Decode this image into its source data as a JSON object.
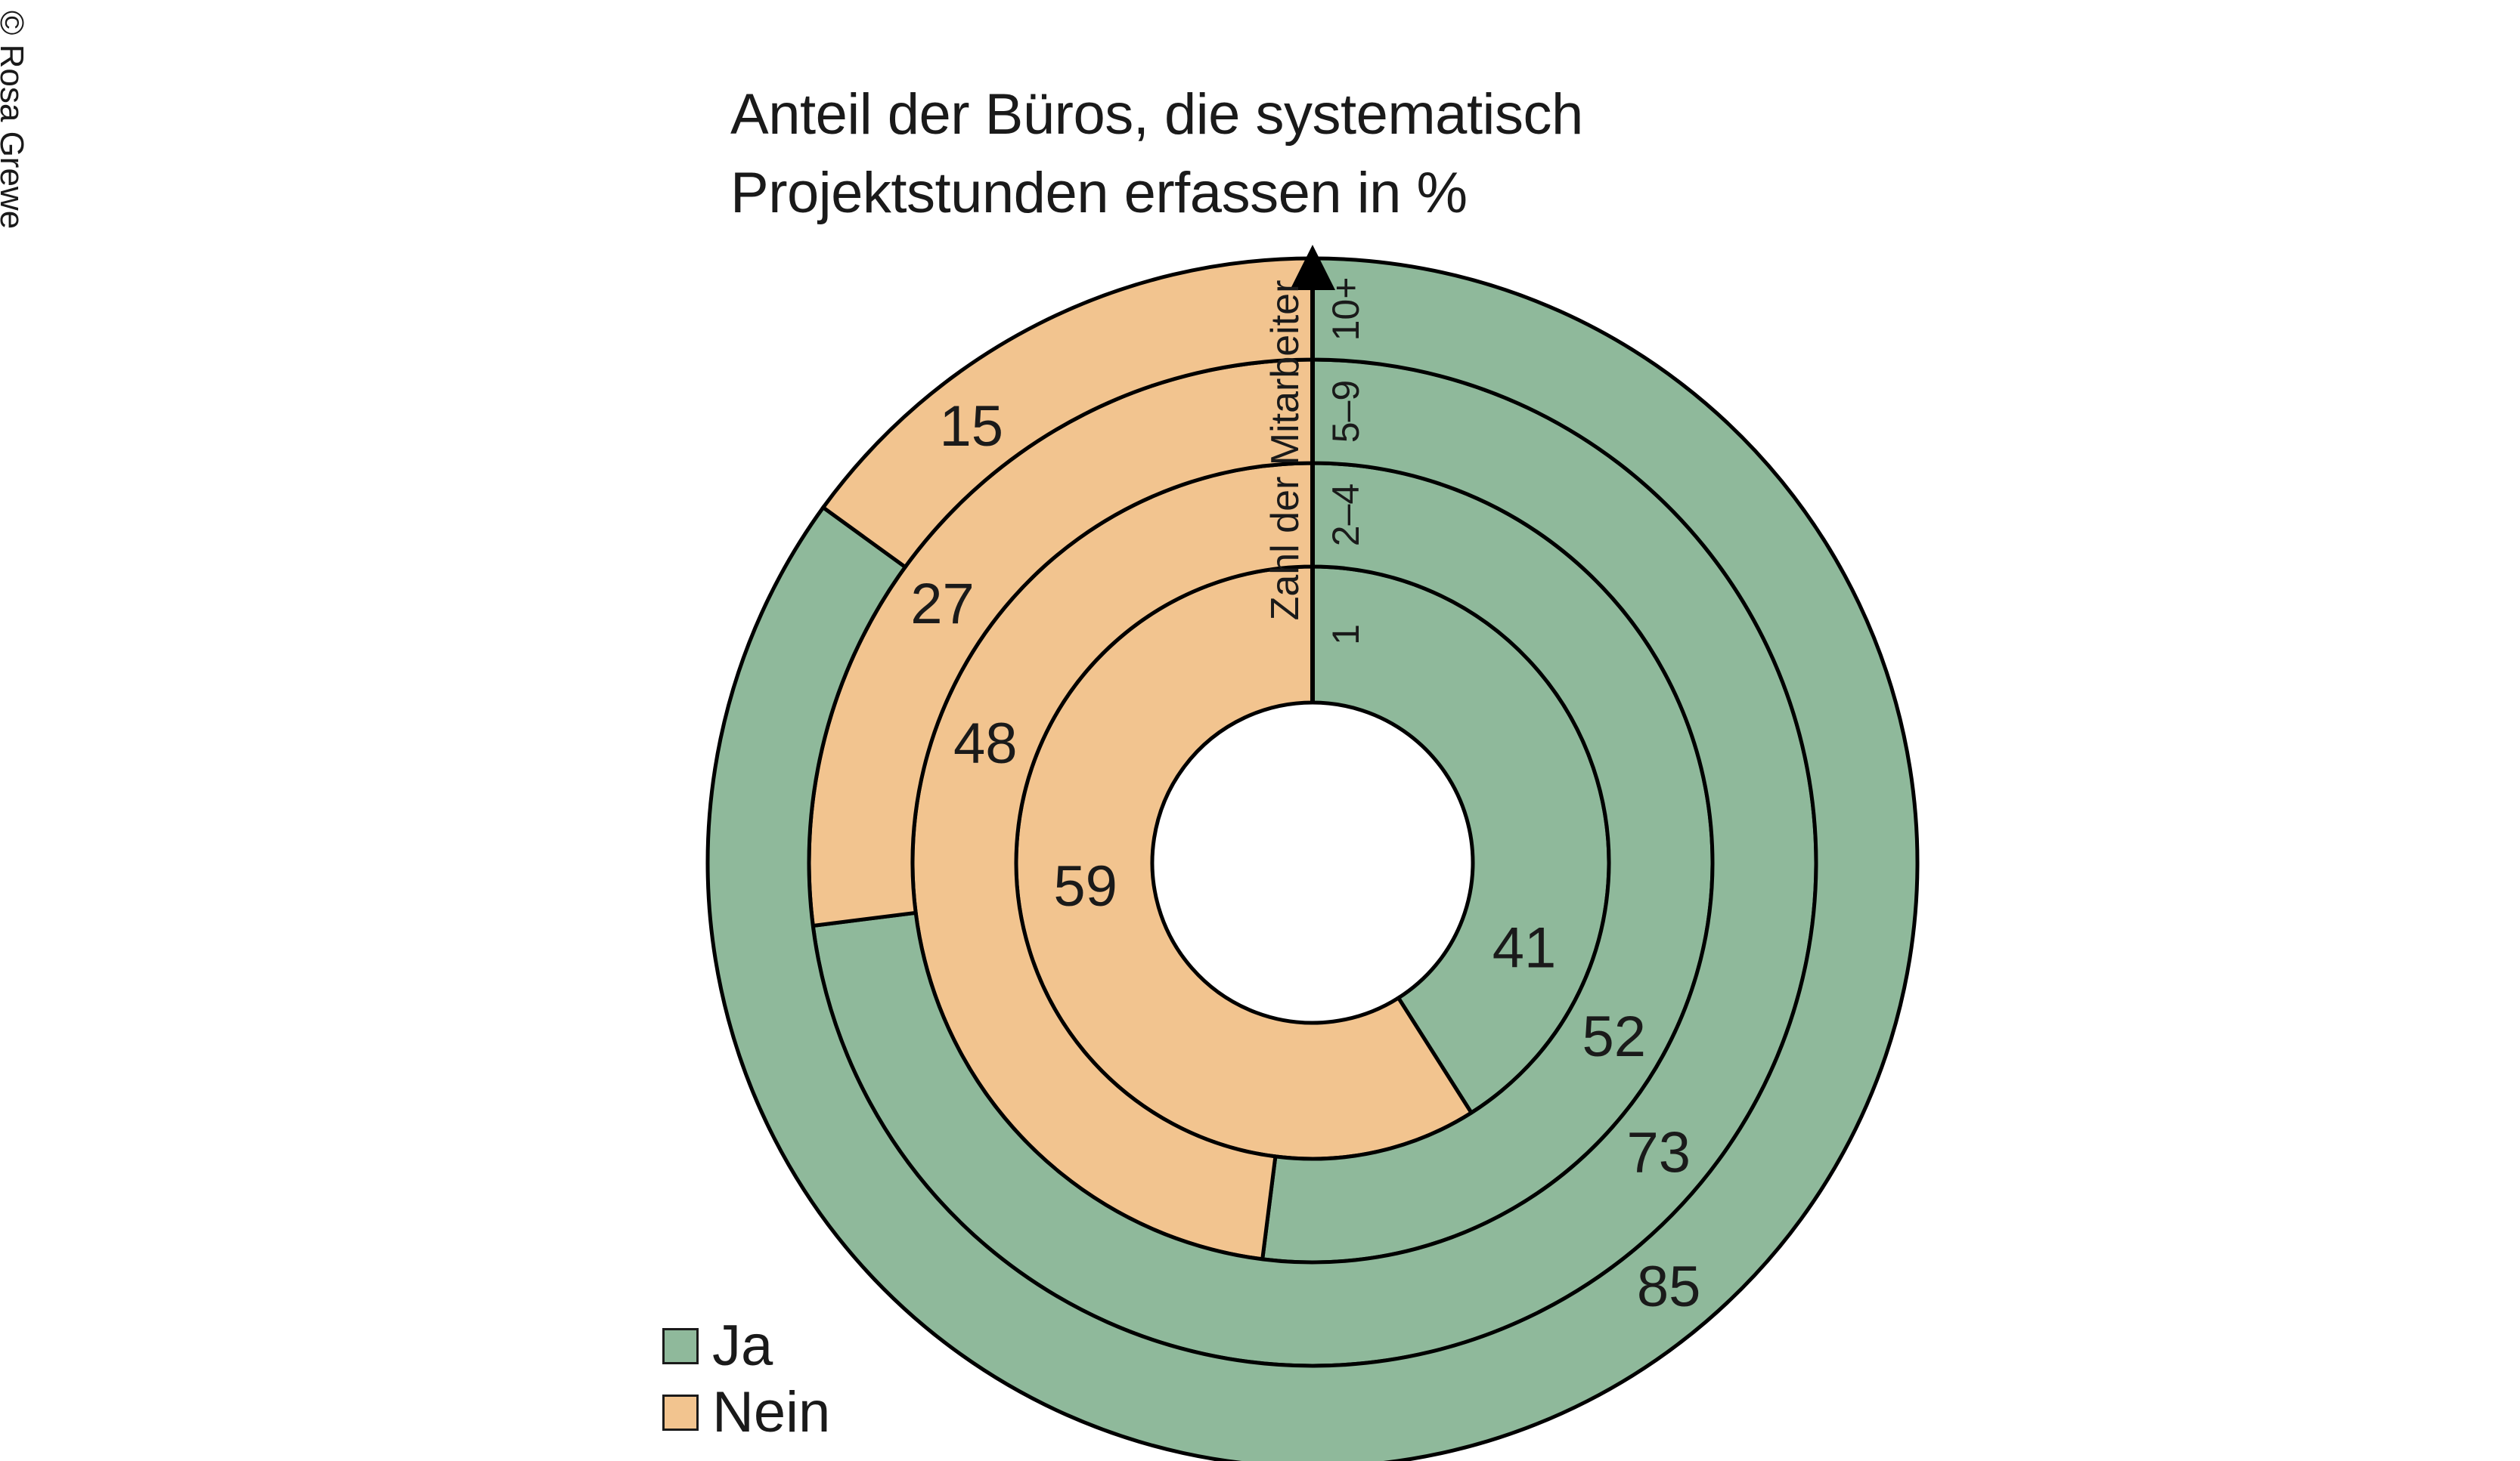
{
  "copyright": "© Rosa Grewe",
  "chart_data": {
    "type": "pie",
    "subtype": "concentric-donut",
    "title_lines": [
      "Anteil der Büros, die systematisch",
      "Projektstunden erfassen in %"
    ],
    "ring_axis_label": "Zahl der Mitarbeiter",
    "rings": [
      "1",
      "2–4",
      "5–9",
      "10+"
    ],
    "series": [
      {
        "name": "Ja",
        "values": [
          41,
          52,
          73,
          85
        ],
        "color": "#8fb99b"
      },
      {
        "name": "Nein",
        "values": [
          59,
          48,
          27,
          15
        ],
        "color": "#f2c48f"
      }
    ],
    "legend": {
      "position": "bottom-left",
      "entries": [
        {
          "label": "Ja",
          "color": "#8fb99b"
        },
        {
          "label": "Nein",
          "color": "#f2c48f"
        }
      ]
    }
  }
}
